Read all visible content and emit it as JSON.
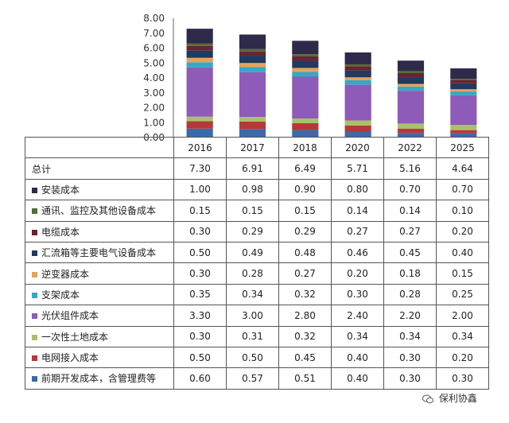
{
  "chart_data": {
    "type": "bar",
    "stacked": true,
    "categories": [
      "2016",
      "2017",
      "2018",
      "2020",
      "2022",
      "2025"
    ],
    "ylim": [
      0,
      8
    ],
    "yticks": [
      "0.00",
      "1.00",
      "2.00",
      "3.00",
      "4.00",
      "5.00",
      "6.00",
      "7.00",
      "8.00"
    ],
    "total_label": "总计",
    "totals": [
      "7.30",
      "6.91",
      "6.49",
      "5.71",
      "5.16",
      "4.64"
    ],
    "series": [
      {
        "name": "前期开发成本，含管理费等",
        "color": "#3c6aa8",
        "values": [
          0.6,
          0.57,
          0.51,
          0.4,
          0.3,
          0.3
        ],
        "labels": [
          "0.60",
          "0.57",
          "0.51",
          "0.40",
          "0.30",
          "0.30"
        ]
      },
      {
        "name": "电网接入成本",
        "color": "#b8383a",
        "values": [
          0.5,
          0.5,
          0.45,
          0.4,
          0.3,
          0.2
        ],
        "labels": [
          "0.50",
          "0.50",
          "0.45",
          "0.40",
          "0.30",
          "0.20"
        ]
      },
      {
        "name": "一次性土地成本",
        "color": "#a9c26a",
        "values": [
          0.3,
          0.31,
          0.32,
          0.34,
          0.34,
          0.34
        ],
        "labels": [
          "0.30",
          "0.31",
          "0.32",
          "0.34",
          "0.34",
          "0.34"
        ]
      },
      {
        "name": "光伏组件成本",
        "color": "#8e5bb8",
        "values": [
          3.3,
          3.0,
          2.8,
          2.4,
          2.2,
          2.0
        ],
        "labels": [
          "3.30",
          "3.00",
          "2.80",
          "2.40",
          "2.20",
          "2.00"
        ]
      },
      {
        "name": "支架成本",
        "color": "#36a8c4",
        "values": [
          0.35,
          0.34,
          0.32,
          0.3,
          0.28,
          0.25
        ],
        "labels": [
          "0.35",
          "0.34",
          "0.32",
          "0.30",
          "0.28",
          "0.25"
        ]
      },
      {
        "name": "逆变器成本",
        "color": "#e7a35a",
        "values": [
          0.3,
          0.28,
          0.27,
          0.2,
          0.18,
          0.15
        ],
        "labels": [
          "0.30",
          "0.28",
          "0.27",
          "0.20",
          "0.18",
          "0.15"
        ]
      },
      {
        "name": "汇流箱等主要电气设备成本",
        "color": "#203a5e",
        "values": [
          0.5,
          0.49,
          0.48,
          0.46,
          0.45,
          0.4
        ],
        "labels": [
          "0.50",
          "0.49",
          "0.48",
          "0.46",
          "0.45",
          "0.40"
        ]
      },
      {
        "name": "电缆成本",
        "color": "#6b2233",
        "values": [
          0.3,
          0.29,
          0.29,
          0.27,
          0.27,
          0.2
        ],
        "labels": [
          "0.30",
          "0.29",
          "0.29",
          "0.27",
          "0.27",
          "0.20"
        ]
      },
      {
        "name": "通讯、监控及其他设备成本",
        "color": "#586c36",
        "values": [
          0.15,
          0.15,
          0.15,
          0.14,
          0.14,
          0.1
        ],
        "labels": [
          "0.15",
          "0.15",
          "0.15",
          "0.14",
          "0.14",
          "0.10"
        ]
      },
      {
        "name": "安装成本",
        "color": "#2e2a4a",
        "values": [
          1.0,
          0.98,
          0.9,
          0.8,
          0.7,
          0.7
        ],
        "labels": [
          "1.00",
          "0.98",
          "0.90",
          "0.80",
          "0.70",
          "0.70"
        ]
      }
    ]
  },
  "watermark": "保利协鑫"
}
